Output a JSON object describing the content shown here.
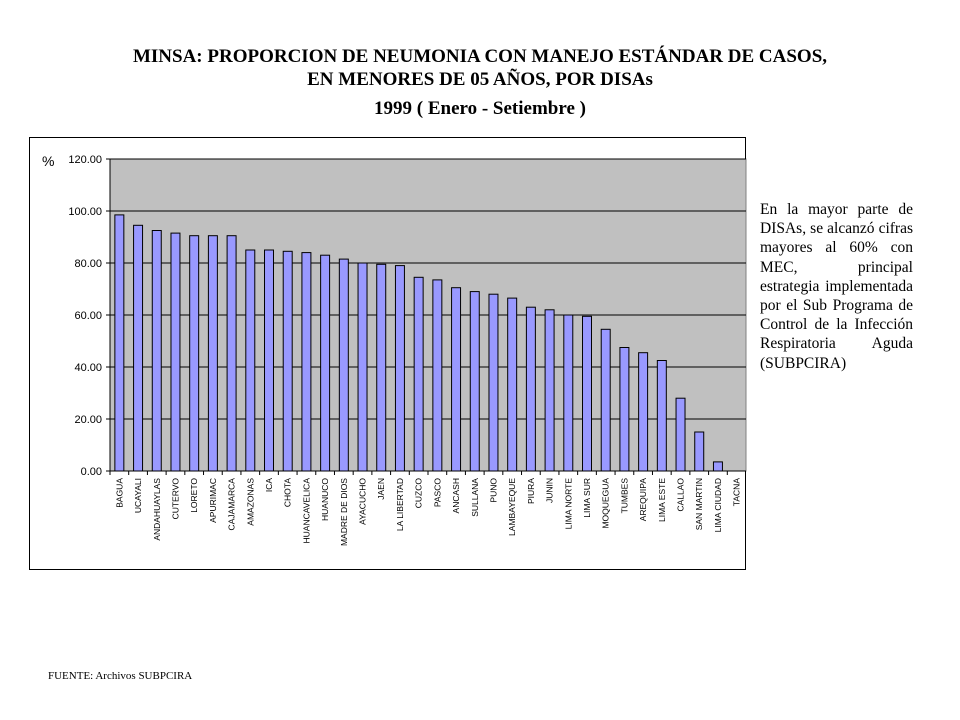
{
  "title": {
    "line1": "MINSA: PROPORCION DE  NEUMONIA CON MANEJO ESTÁNDAR DE CASOS,",
    "line2": "EN MENORES DE  05 AÑOS,  POR DISAs",
    "line3": "1999 ( Enero  -  Setiembre  )"
  },
  "note": "En la mayor parte de DISAs, se alcanzó cifras mayores al 60% con MEC, principal estrategia implementada por el Sub Programa de Control de la Infección Respiratoria Aguda (SUBPCIRA)",
  "source": "FUENTE: Archivos SUBPCIRA",
  "colors": {
    "plot_bg": "#c0c0c0",
    "bar_fill": "#9999ff",
    "bar_stroke": "#000000",
    "grid": "#000000"
  },
  "chart_data": {
    "type": "bar",
    "title": "MINSA: PROPORCION DE NEUMONIA CON MANEJO ESTÁNDAR DE CASOS, EN MENORES DE 05 AÑOS, POR DISAs 1999 ( Enero - Setiembre )",
    "ylabel": "%",
    "xlabel": "",
    "ylim": [
      0,
      120
    ],
    "yticks": [
      0,
      20,
      40,
      60,
      80,
      100,
      120
    ],
    "ytick_labels": [
      "0.00",
      "20.00",
      "40.00",
      "60.00",
      "80.00",
      "100.00",
      "120.00"
    ],
    "grid": true,
    "categories": [
      "BAGUA",
      "UCAYALI",
      "ANDAHUAYLAS",
      "CUTERVO",
      "LORETO",
      "APURIMAC",
      "CAJAMARCA",
      "AMAZONAS",
      "ICA",
      "CHOTA",
      "HUANCAVELICA",
      "HUANUCO",
      "MADRE DE DIOS",
      "AYACUCHO",
      "JAEN",
      "LA LIBERTAD",
      "CUZCO",
      "PASCO",
      "ANCASH",
      "SULLANA",
      "PUNO",
      "LAMBAYEQUE",
      "PIURA",
      "JUNIN",
      "LIMA NORTE",
      "LIMA SUR",
      "MOQUEGUA",
      "TUMBES",
      "AREQUIPA",
      "LIMA ESTE",
      "CALLAO",
      "SAN MARTIN",
      "LIMA CIUDAD",
      "TACNA"
    ],
    "values": [
      98.5,
      94.5,
      92.5,
      91.5,
      90.5,
      90.5,
      90.5,
      85.0,
      85.0,
      84.5,
      84.0,
      83.0,
      81.5,
      80.0,
      79.5,
      79.0,
      74.5,
      73.5,
      70.5,
      69.0,
      68.0,
      66.5,
      63.0,
      62.0,
      60.0,
      59.5,
      54.5,
      47.5,
      45.5,
      42.5,
      28.0,
      15.0,
      3.5,
      0.0
    ]
  }
}
